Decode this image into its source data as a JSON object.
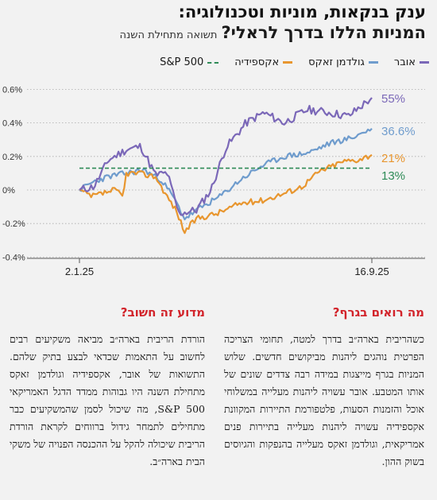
{
  "title": "ענק בנקאות, מוניות וטכנולוגיה:",
  "subtitle": "המניות הללו בדרך לראלי?",
  "subtitle_note": "תשואה מתחילת השנה",
  "colors": {
    "uber": "#7b68b8",
    "goldman": "#6f9ccd",
    "expedia": "#e8962f",
    "sp500": "#2e8b57",
    "accent": "#d2232a"
  },
  "chart_data": {
    "type": "line",
    "y_ticks": [
      "-0.4%",
      "-0.2%",
      "0%",
      "0.2%",
      "0.4%",
      "0.6%"
    ],
    "ylim": [
      -0.4,
      0.6
    ],
    "x_ticks": [
      "2.1.25",
      "16.9.25"
    ],
    "series": [
      {
        "key": "uber",
        "name": "אובר",
        "end_label": "55%",
        "end_value": 0.55
      },
      {
        "key": "goldman",
        "name": "גולדמן זאקס",
        "end_label": "36.6%",
        "end_value": 0.366
      },
      {
        "key": "expedia",
        "name": "אקספידיה",
        "end_label": "21%",
        "end_value": 0.21
      },
      {
        "key": "sp500",
        "name": "S&P 500",
        "end_label": "13%",
        "end_value": 0.13
      }
    ]
  },
  "section_right": {
    "heading": "מה רואים בגרף?",
    "body": "כשהריבית בארה״ב בדרך למטה, תחומי הצריכה הפרטית נוהגים ליהנות מביקושים חדשים. שלוש המניות בגרף מייצגות במידה רבה צדדים שונים של אותו המטבע. אובר עשויה ליהנות מעלייה במשלוחי אוכל והזמנות הסעות, פלטפורמת התיירות המקוונת אקספידיה עשויה ליהנות מעלייה בתיירות פנים אמריקאית, וגולדמן זאקס מעלייה בהנפקות והגיוסים בשוק ההון."
  },
  "section_left": {
    "heading": "מדוע זה חשוב?",
    "body": "הורדת הריבית בארה״ב מביאה משקיעים רבים לחשוב על התאמות שכדאי לבצע בתיק שלהם. התשואות של אובר, אקספידיה וגולדמן זאקס מתחילת השנה היו גבוהות ממדד הדגל האמריקאי S&P 500, מה שיכול לסמן שהמשקיעים כבר מתחילים לתמחר גידול ברווחים לקראת הורדת הריבית שיכולה להקל על ההכנסה הפנויה של משקי הבית בארה״ב."
  }
}
